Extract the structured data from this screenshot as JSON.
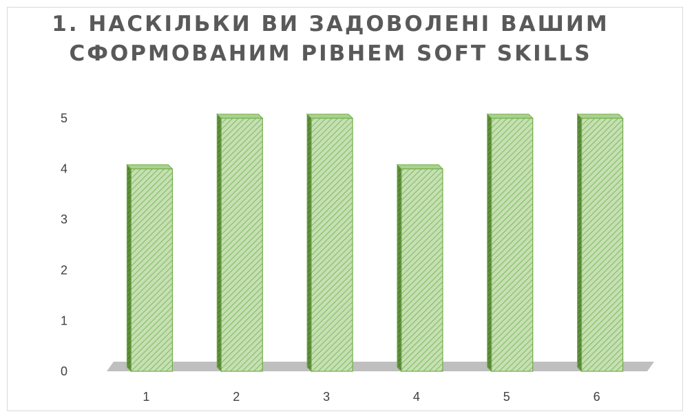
{
  "chart_data": {
    "type": "bar",
    "title": "1. НАСКІЛЬКИ ВИ ЗАДОВОЛЕНІ ВАШИМ СФОРМОВАНИМ РІВНЕМ SOFT SKILLS",
    "categories": [
      "1",
      "2",
      "3",
      "4",
      "5",
      "6"
    ],
    "values": [
      4,
      5,
      5,
      4,
      5,
      5
    ],
    "xlabel": "",
    "ylabel": "",
    "ylim": [
      0,
      5
    ],
    "yticks": [
      "0",
      "1",
      "2",
      "3",
      "4",
      "5"
    ],
    "grid": false,
    "legend": "none",
    "style": "3d-column-hatched",
    "colors": {
      "bar_fill": "#c5e0b3",
      "bar_hatch": "#70ad47",
      "bar_side": "#5e8f3a",
      "bar_top": "#a9d18e",
      "floor": "#bfbfbf"
    }
  }
}
